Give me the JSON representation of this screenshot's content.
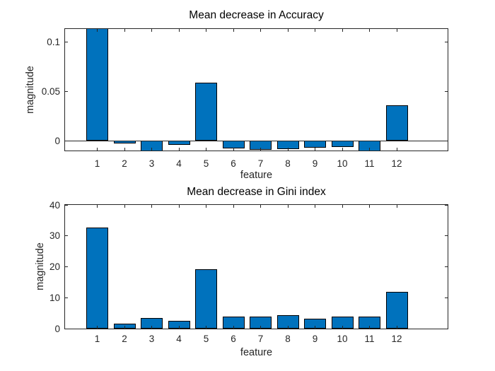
{
  "figure": {
    "background_color": "#ffffff",
    "bar_fill_color": "#0072BD",
    "bar_edge_color": "#000000",
    "axis_color": "#262626",
    "tick_label_color": "#262626",
    "title_color": "#000000"
  },
  "chart_data": [
    {
      "type": "bar",
      "title": "Mean decrease in Accuracy",
      "xlabel": "feature",
      "ylabel": "magnitude",
      "categories": [
        "1",
        "2",
        "3",
        "4",
        "5",
        "6",
        "7",
        "8",
        "9",
        "10",
        "11",
        "12"
      ],
      "values": [
        0.113,
        -0.003,
        -0.01,
        -0.004,
        0.059,
        -0.0078,
        -0.009,
        -0.0083,
        -0.0068,
        -0.0066,
        -0.01,
        0.036
      ],
      "ylim": [
        -0.01,
        0.113
      ],
      "yticks": [
        0,
        0.05,
        0.1
      ],
      "ytick_labels": [
        "0",
        "0.05",
        "0.1"
      ],
      "baseline": 0,
      "grid": false,
      "legend_position": "none"
    },
    {
      "type": "bar",
      "title": "Mean decrease in Gini index",
      "xlabel": "feature",
      "ylabel": "magnitude",
      "categories": [
        "1",
        "2",
        "3",
        "4",
        "5",
        "6",
        "7",
        "8",
        "9",
        "10",
        "11",
        "12"
      ],
      "values": [
        32.8,
        1.6,
        3.5,
        2.5,
        19.3,
        4.0,
        3.8,
        4.3,
        3.3,
        4.0,
        4.0,
        11.8
      ],
      "ylim": [
        0,
        40
      ],
      "yticks": [
        0,
        10,
        20,
        30,
        40
      ],
      "ytick_labels": [
        "0",
        "10",
        "20",
        "30",
        "40"
      ],
      "baseline": 0,
      "grid": false,
      "legend_position": "none"
    }
  ]
}
